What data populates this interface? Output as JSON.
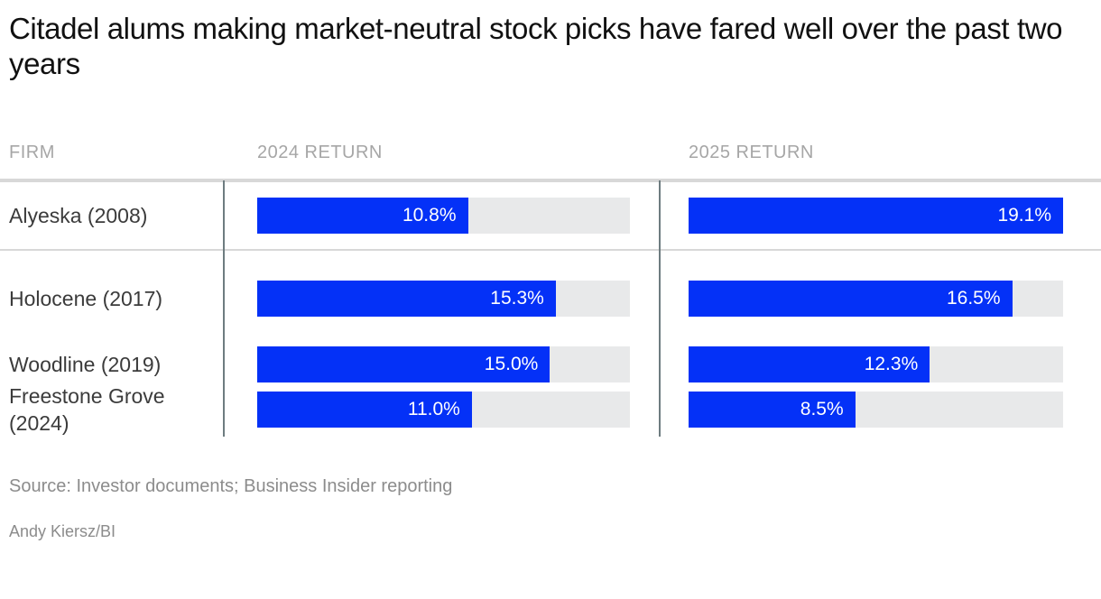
{
  "title": "Citadel alums making market-neutral stock picks have fared well over the past two years",
  "table": {
    "columns": {
      "firm": "FIRM",
      "return_2024": "2024 RETURN",
      "return_2025": "2025 RETURN"
    }
  },
  "footer": {
    "source": "Source: Investor documents; Business Insider reporting",
    "credit": "Andy Kiersz/BI"
  },
  "colors": {
    "bar_fill": "#0431F7",
    "bar_track": "#E8E9EA",
    "vertical_divider": "#6E7C80",
    "horizontal_divider": "#D8D8D8",
    "header_text": "#A6A6A6",
    "firm_text": "#3B3B3B",
    "source_text": "#8C8C8C",
    "title_text": "#111111"
  },
  "chart_data": {
    "type": "bar",
    "orientation": "horizontal",
    "title": "Citadel alums making market-neutral stock picks have fared well over the past two years",
    "categories": [
      "Alyeska (2008)",
      "Holocene (2017)",
      "Woodline (2019)",
      "Freestone Grove (2024)"
    ],
    "series": [
      {
        "name": "2024 RETURN",
        "values": [
          10.8,
          15.3,
          15.0,
          11.0
        ],
        "labels": [
          "10.8%",
          "15.3%",
          "15.0%",
          "11.0%"
        ]
      },
      {
        "name": "2025 RETURN",
        "values": [
          19.1,
          16.5,
          12.3,
          8.5
        ],
        "labels": [
          "19.1%",
          "16.5%",
          "12.3%",
          "8.5%"
        ]
      }
    ],
    "value_axis_max": 19.1,
    "value_labels": "inside-end",
    "grid": false,
    "legend": false,
    "xlabel": "",
    "ylabel": ""
  }
}
